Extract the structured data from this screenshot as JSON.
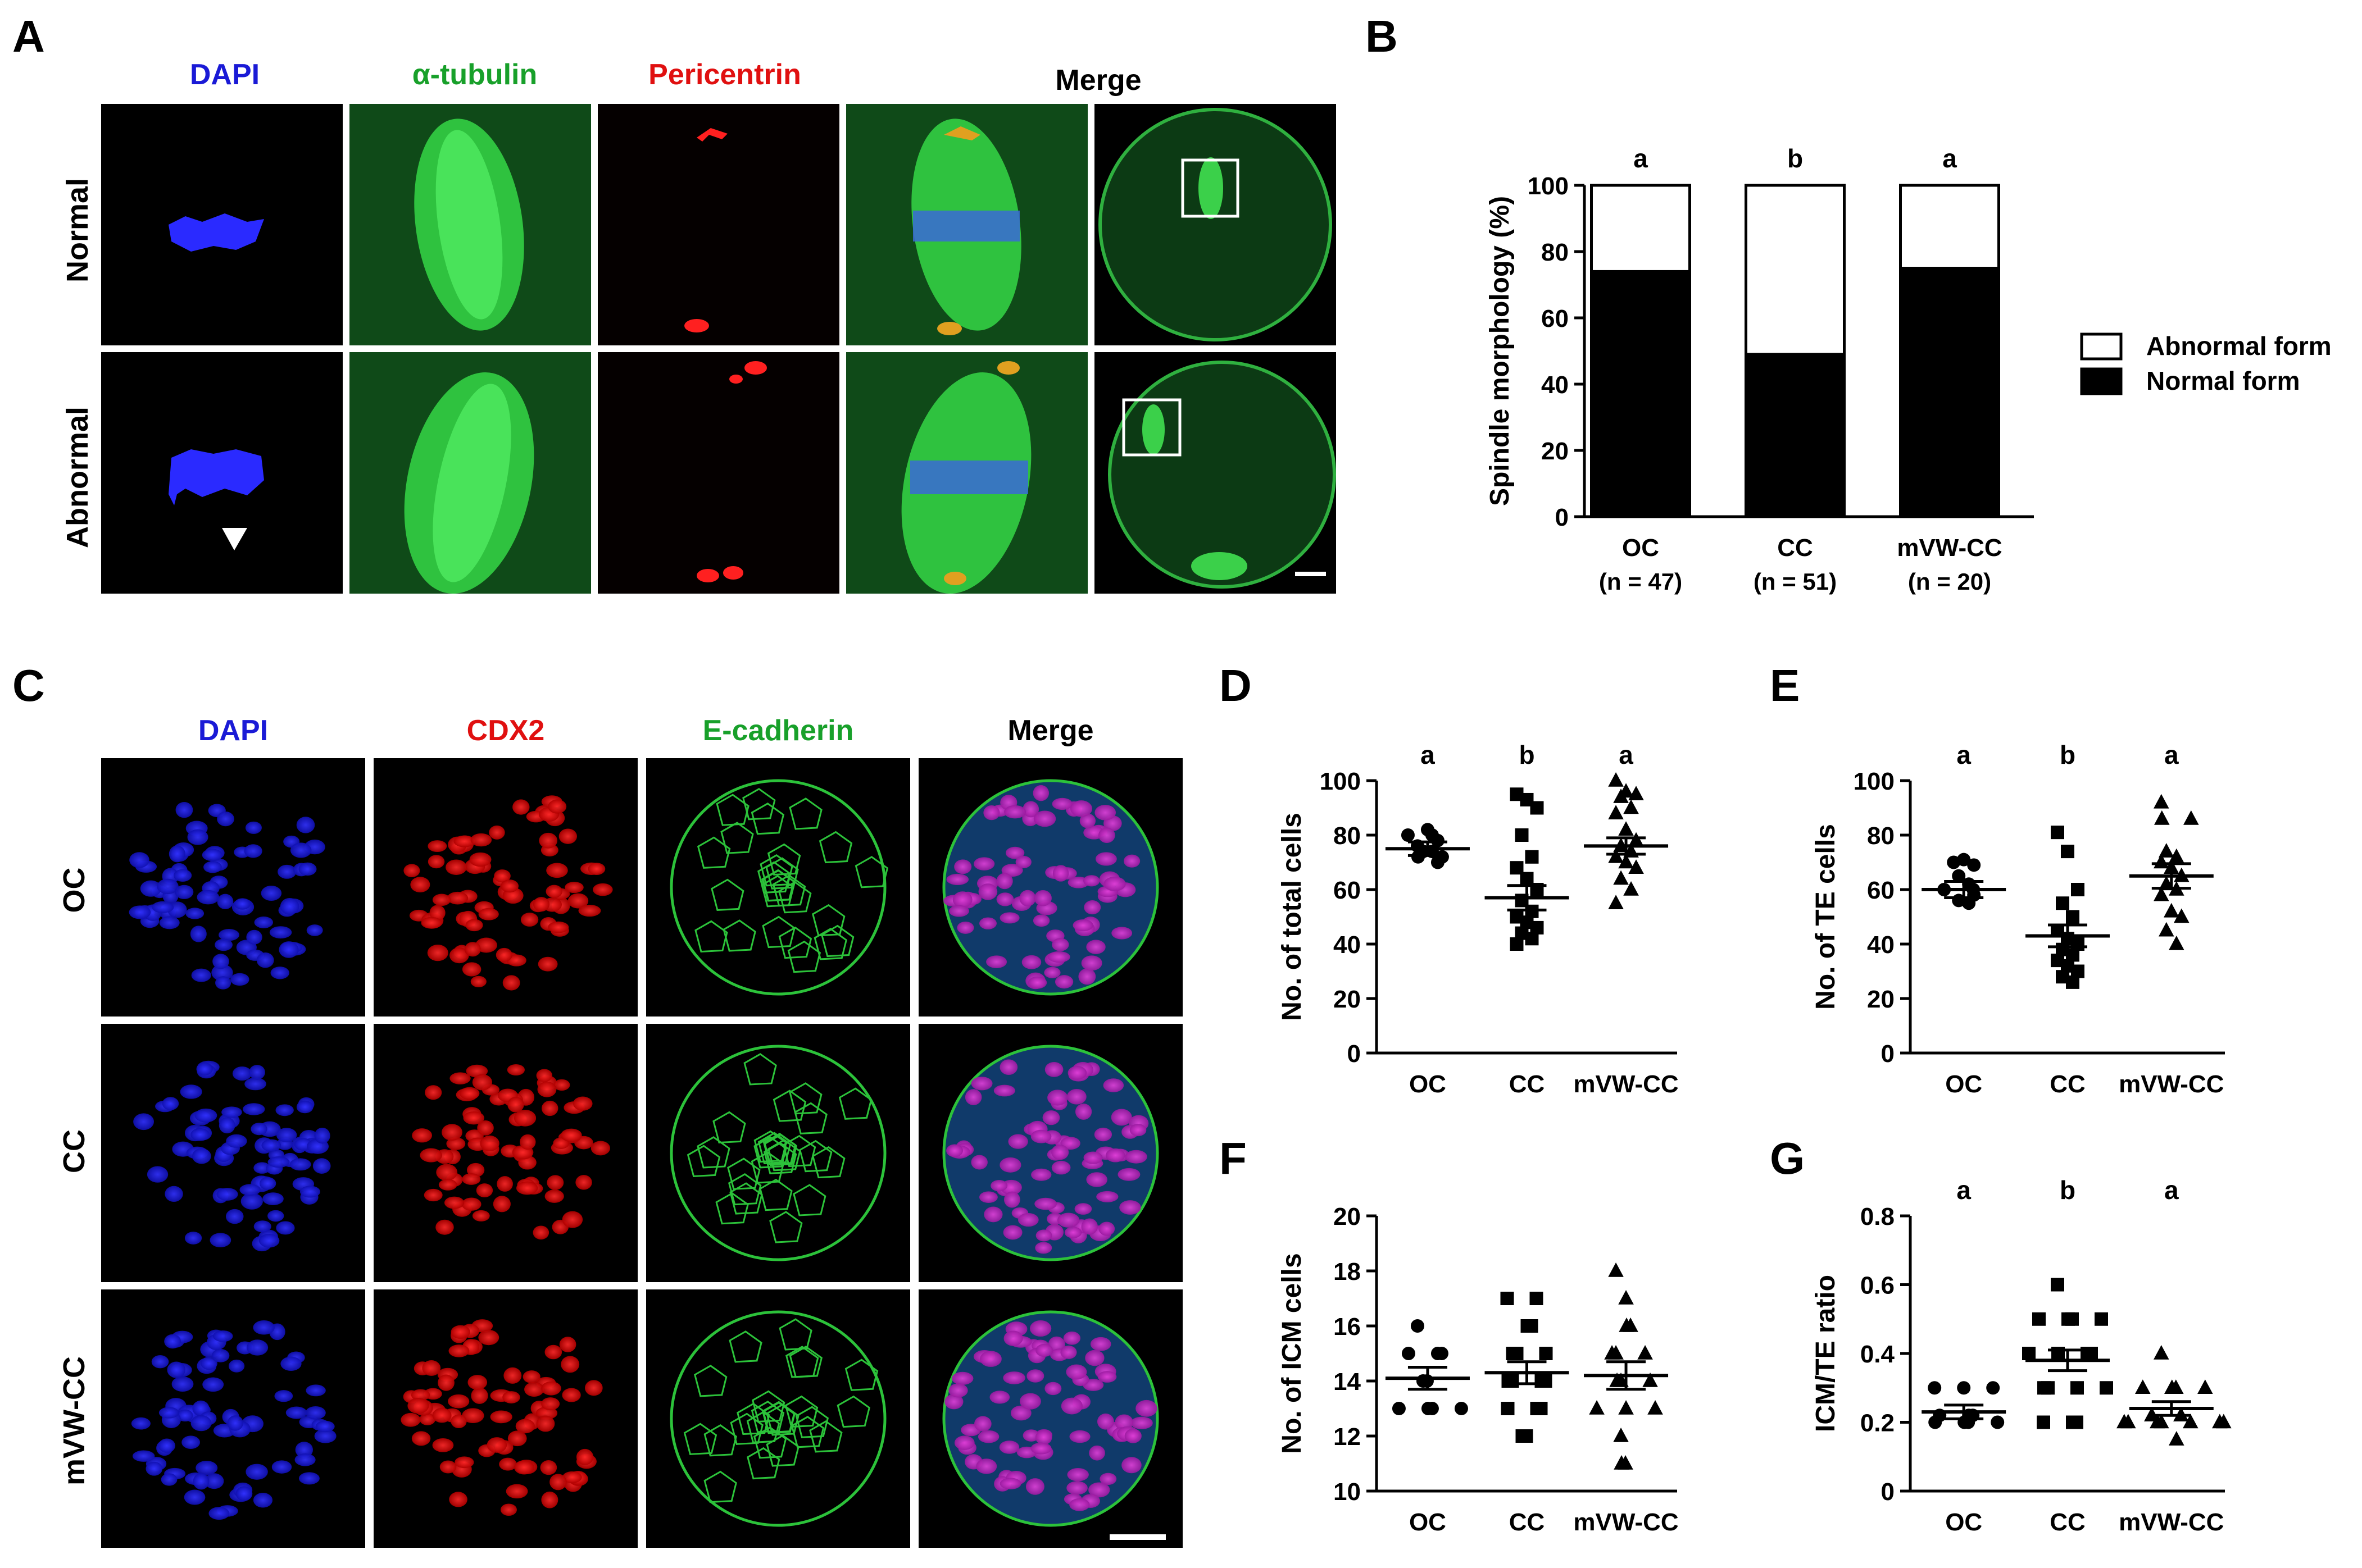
{
  "panel_letters": {
    "A": "A",
    "B": "B",
    "C": "C",
    "D": "D",
    "E": "E",
    "F": "F",
    "G": "G"
  },
  "panelA": {
    "col_titles": {
      "dapi": "DAPI",
      "tubulin": "α-tubulin",
      "pericentrin": "Pericentrin",
      "merge": "Merge"
    },
    "row_labels": {
      "normal": "Normal",
      "abnormal": "Abnormal"
    },
    "colors": {
      "dapi": "#1a1ad6",
      "tubulin": "#18a02a",
      "pericentrin": "#e01010"
    }
  },
  "panelC": {
    "col_titles": {
      "dapi": "DAPI",
      "cdx2": "CDX2",
      "ecad": "E-cadherin",
      "merge": "Merge"
    },
    "row_labels": {
      "oc": "OC",
      "cc": "CC",
      "mvw": "mVW-CC"
    }
  },
  "chart_data": [
    {
      "id": "B",
      "type": "bar",
      "stacked": true,
      "ylabel": "Spindle morphology (%)",
      "ylim": [
        0,
        100
      ],
      "yticks": [
        0,
        20,
        40,
        60,
        80,
        100
      ],
      "categories": [
        "OC",
        "CC",
        "mVW-CC"
      ],
      "n_labels": [
        "(n = 47)",
        "(n = 51)",
        "(n = 20)"
      ],
      "series": [
        {
          "name": "Normal form",
          "color": "#000000",
          "values": [
            74,
            49,
            75
          ]
        },
        {
          "name": "Abnormal form",
          "color": "#ffffff",
          "values": [
            26,
            51,
            25
          ]
        }
      ],
      "letters": [
        "a",
        "b",
        "a"
      ],
      "legend": "right"
    },
    {
      "id": "D",
      "type": "scatter",
      "ylabel": "No. of total cells",
      "ylim": [
        0,
        100
      ],
      "yticks": [
        0,
        20,
        40,
        60,
        80,
        100
      ],
      "categories": [
        "OC",
        "CC",
        "mVW-CC"
      ],
      "letters": [
        "a",
        "b",
        "a"
      ],
      "means": [
        75,
        57,
        76
      ],
      "sems": [
        2.5,
        4.5,
        3
      ],
      "points": [
        [
          80,
          82,
          78,
          80,
          74,
          76,
          72,
          70,
          74,
          72
        ],
        [
          95,
          93,
          90,
          80,
          72,
          68,
          64,
          60,
          56,
          52,
          50,
          48,
          46,
          44,
          42,
          40
        ],
        [
          100,
          96,
          95,
          94,
          90,
          88,
          82,
          78,
          76,
          74,
          72,
          70,
          68,
          64,
          60,
          55
        ]
      ]
    },
    {
      "id": "E",
      "type": "scatter",
      "ylabel": "No. of TE cells",
      "ylim": [
        0,
        100
      ],
      "yticks": [
        0,
        20,
        40,
        60,
        80,
        100
      ],
      "categories": [
        "OC",
        "CC",
        "mVW-CC"
      ],
      "letters": [
        "a",
        "b",
        "a"
      ],
      "means": [
        60,
        43,
        65
      ],
      "sems": [
        3,
        4,
        4.5
      ],
      "points": [
        [
          70,
          71,
          69,
          65,
          62,
          60,
          60,
          58,
          56,
          55
        ],
        [
          81,
          74,
          60,
          55,
          50,
          45,
          42,
          40,
          38,
          36,
          34,
          32,
          30,
          28,
          26
        ],
        [
          92,
          86,
          86,
          74,
          72,
          70,
          68,
          65,
          62,
          60,
          58,
          52,
          50,
          45,
          40
        ]
      ]
    },
    {
      "id": "F",
      "type": "scatter",
      "ylabel": "No. of ICM cells",
      "ylim": [
        10,
        20
      ],
      "yticks": [
        10,
        12,
        14,
        16,
        18,
        20
      ],
      "categories": [
        "OC",
        "CC",
        "mVW-CC"
      ],
      "letters": [],
      "means": [
        14.1,
        14.3,
        14.2
      ],
      "sems": [
        0.4,
        0.4,
        0.5
      ],
      "points": [
        [
          16,
          15,
          15,
          15,
          14,
          14,
          13,
          13,
          13,
          13
        ],
        [
          17,
          17,
          16,
          16,
          15,
          15,
          15,
          14,
          14,
          14,
          14,
          13,
          13,
          13,
          12,
          12
        ],
        [
          18,
          17,
          16,
          16,
          15,
          15,
          15,
          14,
          14,
          14,
          13,
          13,
          13,
          12,
          11,
          11
        ]
      ]
    },
    {
      "id": "G",
      "type": "scatter",
      "ylabel": "ICM/TE ratio",
      "ylim": [
        0,
        0.8
      ],
      "yticks": [
        0,
        0.2,
        0.4,
        0.6,
        0.8
      ],
      "categories": [
        "OC",
        "CC",
        "mVW-CC"
      ],
      "letters": [
        "a",
        "b",
        "a"
      ],
      "means": [
        0.23,
        0.38,
        0.24
      ],
      "sems": [
        0.02,
        0.03,
        0.02
      ],
      "points": [
        [
          0.3,
          0.3,
          0.3,
          0.22,
          0.22,
          0.22,
          0.2,
          0.2,
          0.2,
          0.2
        ],
        [
          0.6,
          0.5,
          0.5,
          0.5,
          0.5,
          0.4,
          0.4,
          0.4,
          0.4,
          0.3,
          0.3,
          0.3,
          0.3,
          0.2,
          0.2,
          0.2
        ],
        [
          0.4,
          0.3,
          0.3,
          0.3,
          0.3,
          0.22,
          0.22,
          0.2,
          0.2,
          0.2,
          0.2,
          0.2,
          0.2,
          0.2,
          0.15
        ]
      ]
    }
  ]
}
